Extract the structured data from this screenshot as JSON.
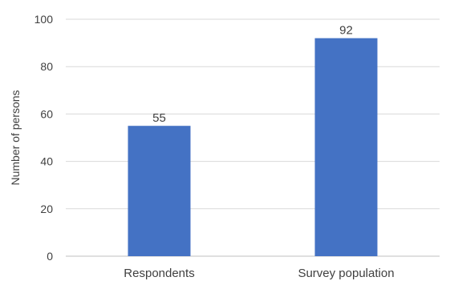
{
  "chart_data": {
    "type": "bar",
    "categories": [
      "Respondents",
      "Survey population"
    ],
    "values": [
      55,
      92
    ],
    "data_labels": [
      "55",
      "92"
    ],
    "title": "",
    "xlabel": "",
    "ylabel": "Number of persons",
    "ylim": [
      0,
      100
    ],
    "yticks": [
      0,
      20,
      40,
      60,
      80,
      100
    ],
    "grid": true,
    "legend": "none",
    "colors": {
      "bar": "#4472C4",
      "grid": "#D9D9D9",
      "axis": "#BFBFBF",
      "text": "#404040"
    }
  }
}
